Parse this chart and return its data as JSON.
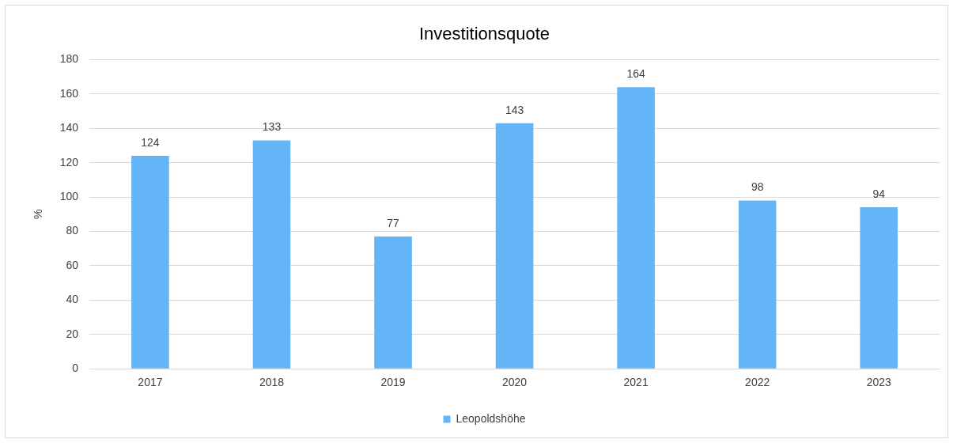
{
  "chart_data": {
    "type": "bar",
    "title": "Investitionsquote",
    "ylabel": "%",
    "categories": [
      "2017",
      "2018",
      "2019",
      "2020",
      "2021",
      "2022",
      "2023"
    ],
    "series": [
      {
        "name": "Leopoldshöhe",
        "color": "#63b5f7",
        "values": [
          124,
          133,
          77,
          143,
          164,
          98,
          94
        ]
      }
    ],
    "ylim": [
      0,
      180
    ],
    "yticks": [
      0,
      20,
      40,
      60,
      80,
      100,
      120,
      140,
      160,
      180
    ],
    "grid": "y",
    "legend": "bottom",
    "data_labels": true
  }
}
